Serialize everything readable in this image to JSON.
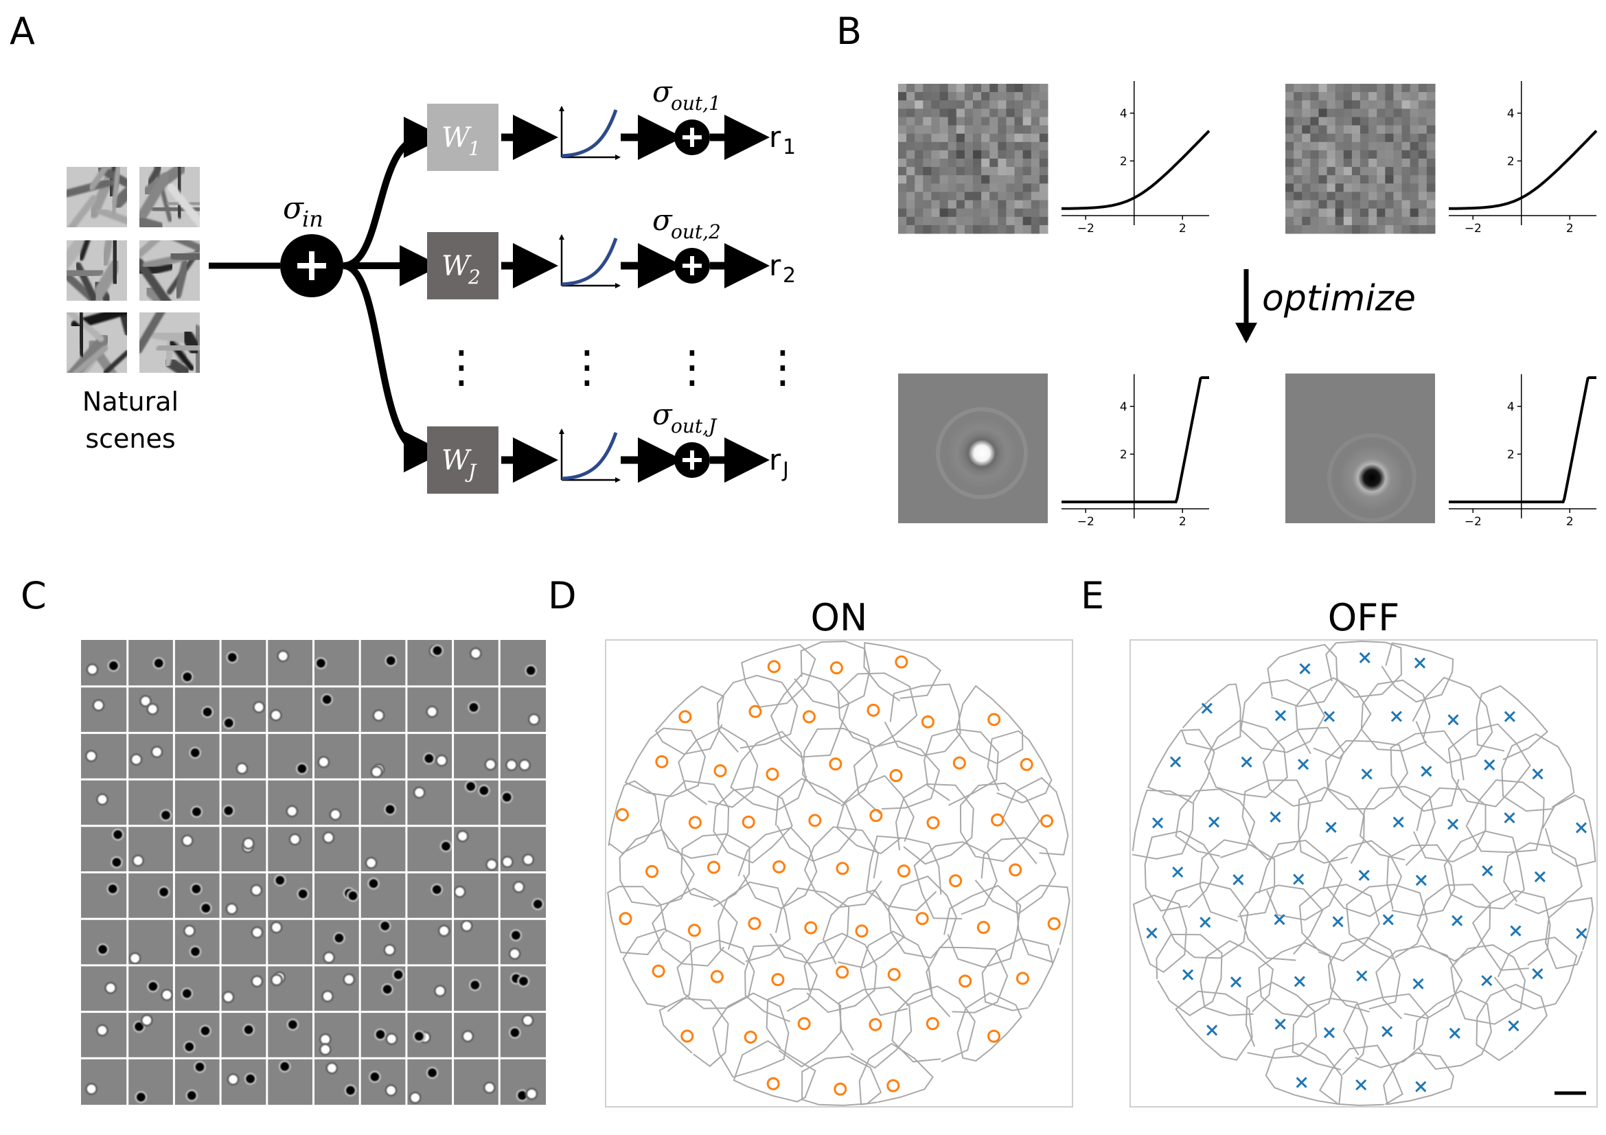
{
  "panel_labels": {
    "a": "A",
    "b": "B",
    "c": "C",
    "d": "D",
    "e": "E"
  },
  "panel_a": {
    "stimulus_label_line1": "Natural",
    "stimulus_label_line2": "scenes",
    "input_noise": {
      "sym": "σ",
      "sub": "in"
    },
    "plus": "+",
    "filters": [
      {
        "w": "W",
        "sub": "1",
        "out_sym": "σ",
        "out_sub": "out,1",
        "r": "r",
        "r_sub": "1"
      },
      {
        "w": "W",
        "sub": "2",
        "out_sym": "σ",
        "out_sub": "out,2",
        "r": "r",
        "r_sub": "2"
      },
      {
        "w": "W",
        "sub": "J",
        "out_sym": "σ",
        "out_sub": "out,J",
        "r": "r",
        "r_sub": "J"
      }
    ],
    "ellipsis": "⋮"
  },
  "panel_b": {
    "step_label": "optimize",
    "x_ticks": [
      "−2",
      "2"
    ],
    "y_ticks": [
      "2",
      "4"
    ],
    "nonlinearity_color": "#000000"
  },
  "panels_de": {
    "on_title": "ON",
    "off_title": "OFF",
    "on_color": "#ff7f0e",
    "off_color": "#1f77b4",
    "outline_color": "#a8a8a8"
  },
  "colors": {
    "curve_blue": "#2c4a8a",
    "box_light": "#b3b3b3",
    "box_dark": "#6b6666",
    "kernel_gray": "#808080"
  }
}
